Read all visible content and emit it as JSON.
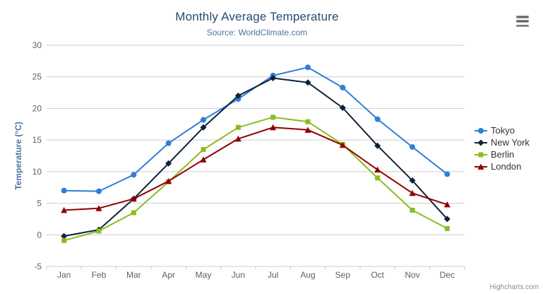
{
  "header": {
    "title": "Monthly Average Temperature",
    "subtitle": "Source: WorldClimate.com"
  },
  "credits": {
    "label": "Highcharts.com"
  },
  "icons": {
    "export_menu": "hamburger-icon"
  },
  "colors": {
    "background": "#ffffff",
    "title": "#274b6d",
    "subtitle": "#4d759e",
    "axis_label": "#606060",
    "axis_title": "#4d759e",
    "grid_line": "#cccccc",
    "axis_line": "#c0d0e0",
    "legend_text": "#333333",
    "credits": "#8a8a8a",
    "export_icon": "#666666"
  },
  "chart_data": {
    "type": "line",
    "title": "Monthly Average Temperature",
    "subtitle": "Source: WorldClimate.com",
    "categories": [
      "Jan",
      "Feb",
      "Mar",
      "Apr",
      "May",
      "Jun",
      "Jul",
      "Aug",
      "Sep",
      "Oct",
      "Nov",
      "Dec"
    ],
    "series": [
      {
        "name": "Tokyo",
        "color": "#2f7ed8",
        "marker": "circle",
        "values": [
          7.0,
          6.9,
          9.5,
          14.5,
          18.2,
          21.5,
          25.2,
          26.5,
          23.3,
          18.3,
          13.9,
          9.6
        ]
      },
      {
        "name": "New York",
        "color": "#0d233a",
        "marker": "diamond",
        "values": [
          -0.2,
          0.8,
          5.7,
          11.3,
          17.0,
          22.0,
          24.8,
          24.1,
          20.1,
          14.1,
          8.6,
          2.5
        ]
      },
      {
        "name": "Berlin",
        "color": "#8bbc21",
        "marker": "square",
        "values": [
          -0.9,
          0.6,
          3.5,
          8.4,
          13.5,
          17.0,
          18.6,
          17.9,
          14.3,
          9.0,
          3.9,
          1.0
        ]
      },
      {
        "name": "London",
        "color": "#910000",
        "marker": "triangle",
        "values": [
          3.9,
          4.2,
          5.7,
          8.5,
          11.9,
          15.2,
          17.0,
          16.6,
          14.2,
          10.3,
          6.6,
          4.8
        ]
      }
    ],
    "xlabel": "",
    "ylabel": "Temperature (°C)",
    "ylim": [
      -5,
      30
    ],
    "ytick_step": 5,
    "grid": true,
    "legend_position": "right"
  }
}
